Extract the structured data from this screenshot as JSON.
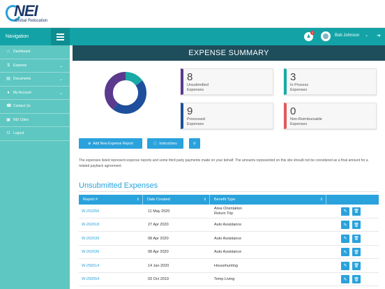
{
  "logo": {
    "brand": "NEI",
    "sub": "Global Relocation"
  },
  "sidebar": {
    "header": "Navigation",
    "items": [
      {
        "label": "Dashboard",
        "icon": "dashboard-icon",
        "glyph": "⌂"
      },
      {
        "label": "Expense",
        "icon": "dollar-icon",
        "glyph": "$",
        "chev": "⌄"
      },
      {
        "label": "Documents",
        "icon": "folder-icon",
        "glyph": "▤",
        "chev": "⌄"
      },
      {
        "label": "My Account",
        "icon": "user-icon",
        "glyph": "●",
        "chev": "⌄"
      },
      {
        "label": "Contact Us",
        "icon": "contacts-icon",
        "glyph": "☎"
      },
      {
        "label": "NEI Cities",
        "icon": "city-icon",
        "glyph": "▣"
      },
      {
        "label": "Logout",
        "icon": "logout-icon",
        "glyph": "⏻"
      }
    ]
  },
  "topbar": {
    "notifications": "1",
    "username": "Bob Johnson"
  },
  "page": {
    "title": "EXPENSE SUMMARY"
  },
  "colors": {
    "unsubmitted": "#5b3a8e",
    "in_process": "#19a9a6",
    "processed": "#1f4f9c",
    "non_reimbursable": "#e05b5b"
  },
  "summary": {
    "unsubmitted": {
      "value": "8",
      "label1": "Unsubmitted",
      "label2": "Expenses"
    },
    "in_process": {
      "value": "3",
      "label1": "In Process",
      "label2": "Expenses"
    },
    "processed": {
      "value": "9",
      "label1": "Processed",
      "label2": "Expenses"
    },
    "non_reimbursable": {
      "value": "0",
      "label1": "Non-Reimbursable",
      "label2": "Expenses"
    }
  },
  "buttons": {
    "add": "Add New Expense Report",
    "instructions": "Instructions"
  },
  "disclaimer": "The expenses listed represent expense reports and some third party payments made on your behalf. The amounts represented on this site should not be considered as a final amount for a related payback agreement.",
  "section": {
    "title": "Unsubmitted Expenses"
  },
  "table": {
    "headers": {
      "report": "Report #",
      "date": "Date Created",
      "benefit": "Benefit Type"
    },
    "rows": [
      {
        "report": "W-263256",
        "date": "11 May 2020",
        "benefit": "Area Orientation",
        "benefit2": "Return Trip"
      },
      {
        "report": "W-262618",
        "date": "27 Apr 2020",
        "benefit": "Auto Assistance"
      },
      {
        "report": "W-262039",
        "date": "08 Apr 2020",
        "benefit": "Auto Assistance"
      },
      {
        "report": "W-262036",
        "date": "08 Apr 2020",
        "benefit": "Auto Assistance"
      },
      {
        "report": "W-256514",
        "date": "14 Jan 2020",
        "benefit": "Househunting"
      },
      {
        "report": "W-250554",
        "date": "03 Oct 2019",
        "benefit": "Temp Living"
      }
    ]
  }
}
